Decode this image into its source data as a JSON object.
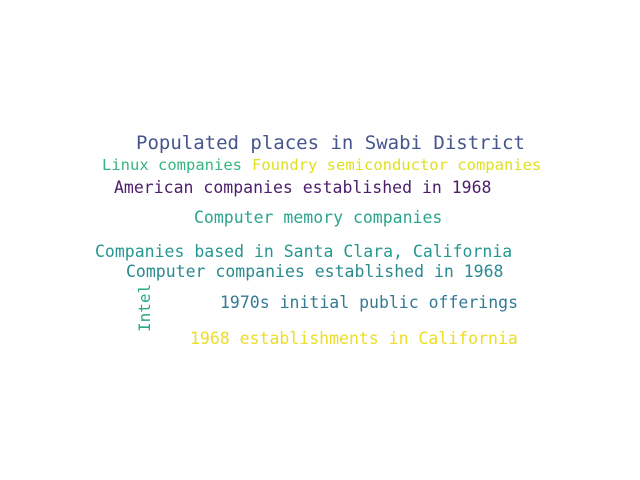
{
  "words": [
    {
      "text": "Populated places in Swabi District",
      "color": "#46558c"
    },
    {
      "text": "Linux companies",
      "color": "#33b682"
    },
    {
      "text": "Foundry semiconductor companies",
      "color": "#e0e020"
    },
    {
      "text": "American companies established in 1968",
      "color": "#4b1d6a"
    },
    {
      "text": "Computer memory companies",
      "color": "#2ba48e"
    },
    {
      "text": "Companies based in Santa Clara, California",
      "color": "#269790"
    },
    {
      "text": "Computer companies established in 1968",
      "color": "#2a8a90"
    },
    {
      "text": "Intel",
      "color": "#29a88a"
    },
    {
      "text": "1970s initial public offerings",
      "color": "#357a95"
    },
    {
      "text": "1968 establishments in California",
      "color": "#ecde22"
    }
  ]
}
